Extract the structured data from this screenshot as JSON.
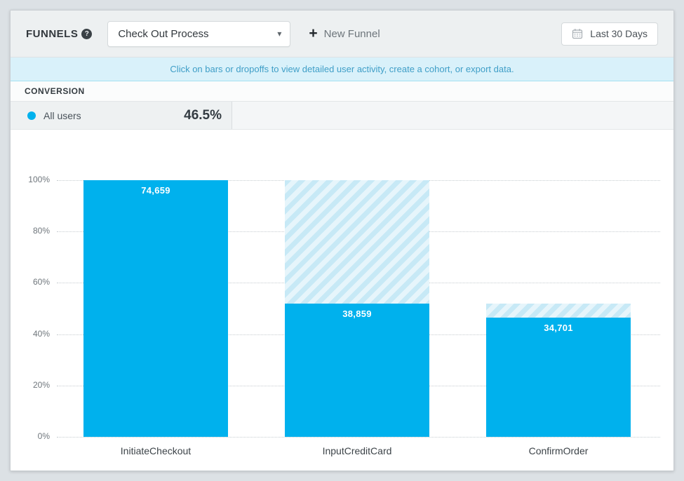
{
  "header": {
    "section_label": "FUNNELS",
    "funnel_selector_value": "Check Out Process",
    "new_funnel_label": "New Funnel",
    "date_range_label": "Last 30 Days"
  },
  "icons": {
    "help_glyph": "?",
    "plus_glyph": "+",
    "caret_glyph": "▾"
  },
  "banner": {
    "text": "Click on bars or dropoffs to view detailed user activity, create a cohort, or export data."
  },
  "conversion": {
    "title": "CONVERSION",
    "legend_label": "All users",
    "legend_value": "46.5%",
    "dot_color": "#00b1ed"
  },
  "chart_data": {
    "type": "bar",
    "categories": [
      "InitiateCheckout",
      "InputCreditCard",
      "ConfirmOrder"
    ],
    "values": [
      74659,
      38859,
      34701
    ],
    "value_labels": [
      "74,659",
      "38,859",
      "34,701"
    ],
    "series": [
      {
        "name": "All users",
        "values": [
          74659,
          38859,
          34701
        ]
      }
    ],
    "overall_conversion": "46.5%",
    "y_ticks": [
      {
        "label": "100%",
        "value": 100
      },
      {
        "label": "80%",
        "value": 80
      },
      {
        "label": "60%",
        "value": 60
      },
      {
        "label": "40%",
        "value": 40
      },
      {
        "label": "20%",
        "value": 20
      },
      {
        "label": "0%",
        "value": 0
      }
    ],
    "ylim": [
      0,
      100
    ],
    "grid": "dotted-horizontal",
    "legend_position": "top-left",
    "bar_color": "#00b1ed",
    "dropoff_stripe_colors": [
      "#c7e9f6",
      "#e6f5fb"
    ]
  }
}
